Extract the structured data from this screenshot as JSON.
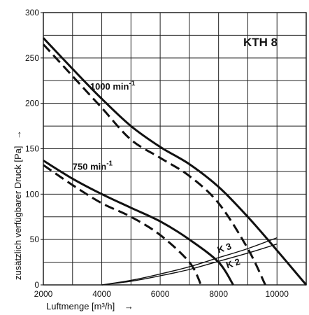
{
  "chart_data": {
    "type": "line",
    "title": "KTH 8",
    "xlabel": "Luftmenge [m³/h]",
    "xlabel_arrow": "→",
    "ylabel": "zusätzlich verfügbarer Druck [Pa]",
    "ylabel_arrow": "→",
    "xlim": [
      2000,
      11000
    ],
    "ylim": [
      0,
      300
    ],
    "xticks": [
      2000,
      4000,
      6000,
      8000,
      10000
    ],
    "yticks": [
      0,
      50,
      100,
      150,
      200,
      250,
      300
    ],
    "grid": true,
    "speed_labels": [
      {
        "text": "1000 min⁻¹",
        "x": 3600,
        "y": 215
      },
      {
        "text": "750 min⁻¹",
        "x": 3000,
        "y": 127
      }
    ],
    "series": [
      {
        "name": "1000 min⁻¹",
        "style": "solid",
        "x": [
          2000,
          3000,
          4000,
          5000,
          6000,
          7000,
          8000,
          9000,
          10000,
          11000
        ],
        "y": [
          272,
          238,
          205,
          175,
          152,
          133,
          108,
          75,
          38,
          0
        ]
      },
      {
        "name": "1000 min⁻¹",
        "style": "dashed",
        "x": [
          2000,
          3000,
          4000,
          5000,
          6000,
          7000,
          8000,
          9000,
          9600
        ],
        "y": [
          265,
          230,
          195,
          160,
          140,
          120,
          90,
          40,
          0
        ]
      },
      {
        "name": "750 min⁻¹",
        "style": "solid",
        "x": [
          2000,
          3000,
          4000,
          5000,
          6000,
          7000,
          8000,
          8500
        ],
        "y": [
          137,
          117,
          100,
          85,
          70,
          50,
          25,
          0
        ]
      },
      {
        "name": "750 min⁻¹",
        "style": "dashed",
        "x": [
          2000,
          3000,
          4000,
          5000,
          6000,
          7000,
          7400
        ],
        "y": [
          132,
          110,
          90,
          75,
          55,
          25,
          0
        ]
      },
      {
        "name": "K 3",
        "style": "solid-thin",
        "x": [
          4000,
          5000,
          6000,
          7000,
          8000,
          9000,
          10000
        ],
        "y": [
          0,
          5,
          12,
          20,
          30,
          40,
          52
        ]
      },
      {
        "name": "K 2",
        "style": "solid-thin",
        "x": [
          4000,
          5000,
          6000,
          7000,
          8000,
          9000,
          10000
        ],
        "y": [
          0,
          4,
          10,
          17,
          26,
          35,
          45
        ]
      }
    ],
    "curve_labels": [
      {
        "text": "K 3",
        "x": 8000,
        "y": 35
      },
      {
        "text": "K 2",
        "x": 8300,
        "y": 18
      }
    ]
  }
}
